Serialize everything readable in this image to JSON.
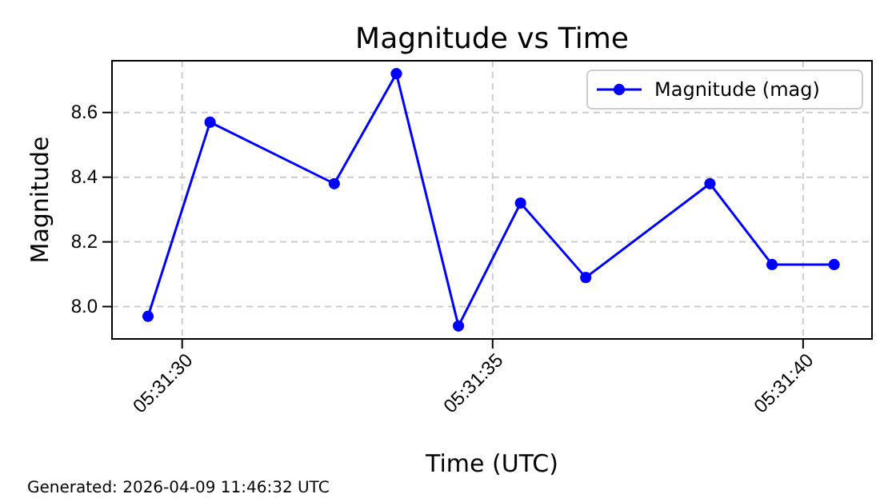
{
  "chart_data": {
    "type": "line",
    "title": "Magnitude vs Time",
    "xlabel": "Time (UTC)",
    "ylabel": "Magnitude",
    "x": [
      5.52484722,
      5.525125,
      5.52568056,
      5.52595833,
      5.52623611,
      5.52651389,
      5.52680556,
      5.52736111,
      5.52763889,
      5.52791667
    ],
    "series": [
      {
        "name": "Magnitude (mag)",
        "color": "#0000ff",
        "values": [
          7.97,
          8.57,
          8.38,
          8.72,
          7.94,
          8.32,
          8.09,
          8.38,
          8.13,
          8.13
        ]
      }
    ],
    "xlim": [
      5.52468611,
      5.52808611
    ],
    "xticks": [
      {
        "value": 5.525,
        "label": "05:31:30"
      },
      {
        "value": 5.52638889,
        "label": "05:31:35"
      },
      {
        "value": 5.52777778,
        "label": "05:31:40"
      }
    ],
    "ylim": [
      7.9,
      8.76
    ],
    "yticks": [
      {
        "value": 8.0,
        "label": "8.0"
      },
      {
        "value": 8.2,
        "label": "8.2"
      },
      {
        "value": 8.4,
        "label": "8.4"
      },
      {
        "value": 8.6,
        "label": "8.6"
      }
    ],
    "grid": true,
    "legend": "top right",
    "marker": "circle",
    "line_style": "solid",
    "annotations": [
      "Generated: 2026-04-09 11:46:32 UTC"
    ]
  }
}
